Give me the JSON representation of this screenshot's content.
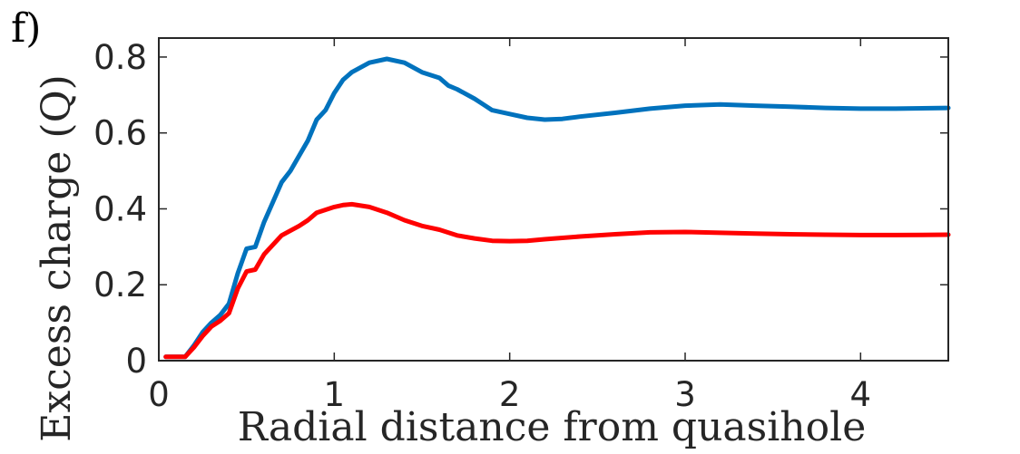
{
  "panel_label": "f)",
  "chart_data": {
    "type": "line",
    "title": "",
    "xlabel": "Radial distance from quasihole",
    "ylabel": "Excess charge (Q)",
    "xlim": [
      0,
      4.5
    ],
    "ylim": [
      0,
      0.85
    ],
    "xticks": [
      0,
      1,
      2,
      3,
      4
    ],
    "xtick_labels": [
      "0",
      "1",
      "2",
      "3",
      "4"
    ],
    "yticks": [
      0,
      0.2,
      0.4,
      0.6,
      0.8
    ],
    "ytick_labels": [
      "0",
      "0.2",
      "0.4",
      "0.6",
      "0.8"
    ],
    "grid": false,
    "legend": "none",
    "series": [
      {
        "color": "#0072bd",
        "x": [
          0.04,
          0.15,
          0.2,
          0.25,
          0.3,
          0.35,
          0.4,
          0.45,
          0.5,
          0.55,
          0.6,
          0.7,
          0.75,
          0.8,
          0.85,
          0.9,
          0.95,
          1.0,
          1.05,
          1.1,
          1.2,
          1.3,
          1.4,
          1.5,
          1.6,
          1.65,
          1.7,
          1.8,
          1.85,
          1.9,
          2.0,
          2.1,
          2.2,
          2.3,
          2.4,
          2.6,
          2.8,
          3.0,
          3.2,
          3.4,
          3.6,
          3.8,
          4.0,
          4.2,
          4.5
        ],
        "y": [
          0.01,
          0.01,
          0.04,
          0.075,
          0.1,
          0.12,
          0.15,
          0.23,
          0.295,
          0.3,
          0.365,
          0.47,
          0.5,
          0.54,
          0.58,
          0.635,
          0.66,
          0.705,
          0.74,
          0.76,
          0.785,
          0.795,
          0.785,
          0.76,
          0.745,
          0.725,
          0.715,
          0.69,
          0.675,
          0.66,
          0.65,
          0.64,
          0.635,
          0.637,
          0.643,
          0.653,
          0.664,
          0.672,
          0.675,
          0.672,
          0.669,
          0.666,
          0.664,
          0.664,
          0.666
        ]
      },
      {
        "color": "#ff0000",
        "x": [
          0.04,
          0.15,
          0.2,
          0.25,
          0.3,
          0.35,
          0.4,
          0.45,
          0.5,
          0.55,
          0.6,
          0.7,
          0.8,
          0.85,
          0.9,
          1.0,
          1.05,
          1.1,
          1.2,
          1.3,
          1.4,
          1.5,
          1.6,
          1.7,
          1.8,
          1.9,
          2.0,
          2.1,
          2.2,
          2.4,
          2.6,
          2.8,
          3.0,
          3.2,
          3.4,
          3.6,
          3.8,
          4.0,
          4.2,
          4.5
        ],
        "y": [
          0.01,
          0.01,
          0.035,
          0.065,
          0.09,
          0.105,
          0.125,
          0.19,
          0.235,
          0.24,
          0.28,
          0.33,
          0.355,
          0.37,
          0.39,
          0.405,
          0.41,
          0.412,
          0.405,
          0.39,
          0.37,
          0.355,
          0.345,
          0.33,
          0.322,
          0.316,
          0.315,
          0.316,
          0.32,
          0.327,
          0.333,
          0.338,
          0.339,
          0.337,
          0.335,
          0.333,
          0.332,
          0.331,
          0.331,
          0.332
        ]
      }
    ]
  }
}
